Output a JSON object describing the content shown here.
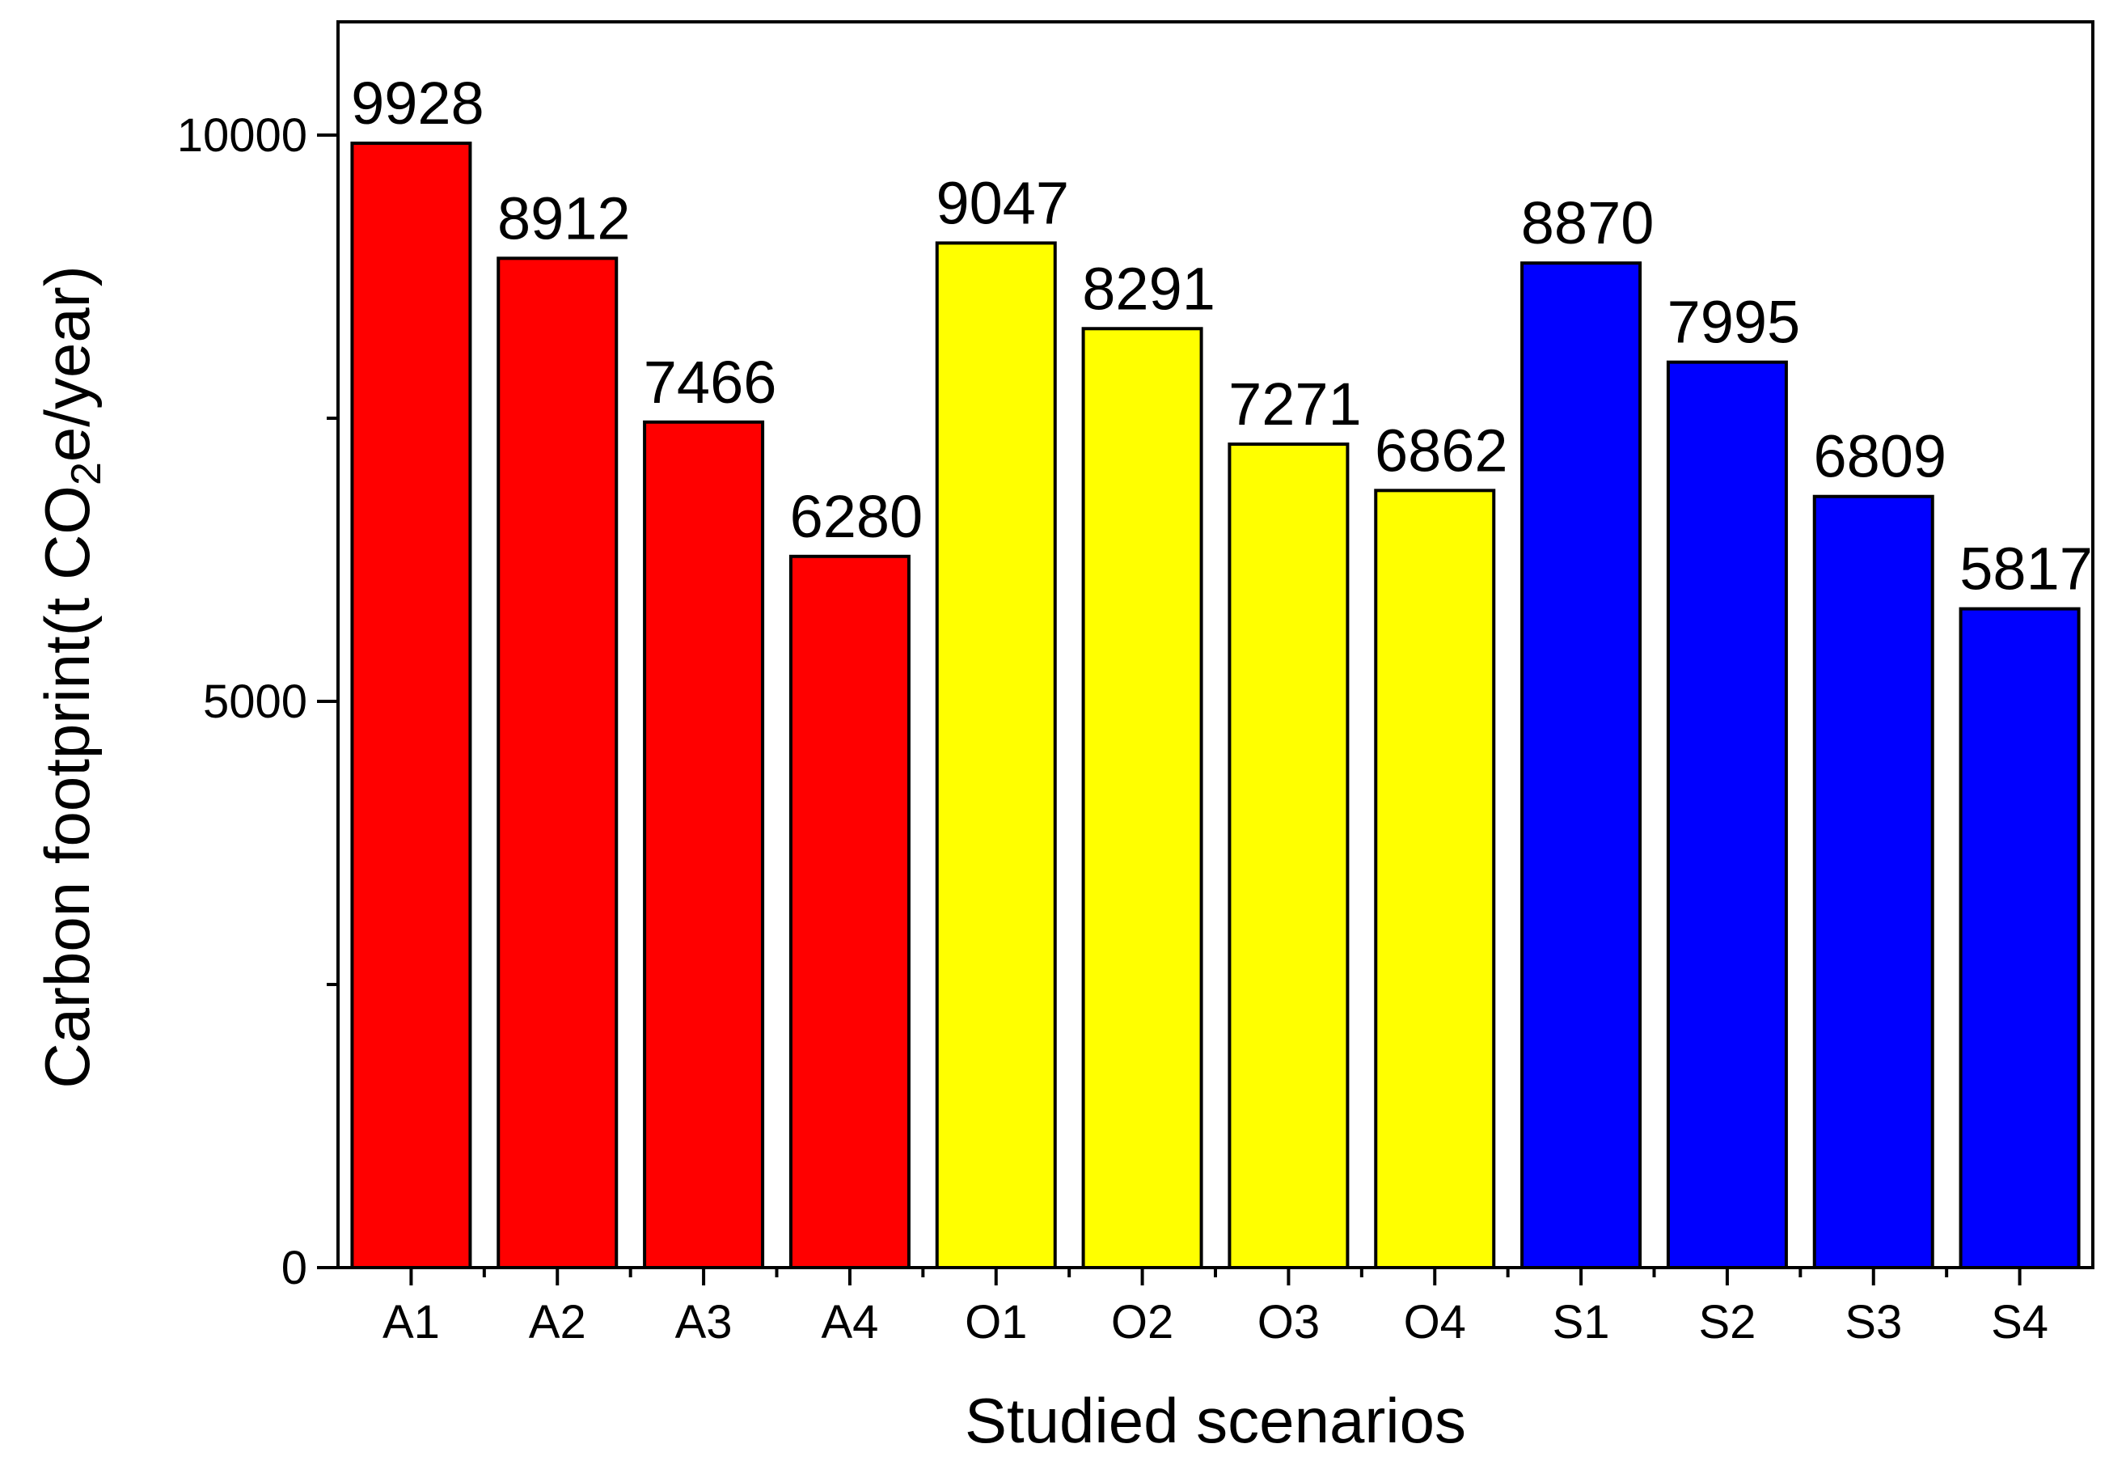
{
  "chart_data": {
    "type": "bar",
    "categories": [
      "A1",
      "A2",
      "A3",
      "A4",
      "O1",
      "O2",
      "O3",
      "O4",
      "S1",
      "S2",
      "S3",
      "S4"
    ],
    "values": [
      9928,
      8912,
      7466,
      6280,
      9047,
      8291,
      7271,
      6862,
      8870,
      7995,
      6809,
      5817
    ],
    "data_labels": [
      "9928",
      "8912",
      "7466",
      "6280",
      "9047",
      "8291",
      "7271",
      "6862",
      "8870",
      "7995",
      "6809",
      "5817"
    ],
    "bar_colors": [
      "#ff0000",
      "#ff0000",
      "#ff0000",
      "#ff0000",
      "#ffff00",
      "#ffff00",
      "#ffff00",
      "#ffff00",
      "#0000ff",
      "#0000ff",
      "#0000ff",
      "#0000ff"
    ],
    "xlabel": "Studied scenarios",
    "ylabel": {
      "prefix": "Carbon footprint(t CO",
      "subscript": "2",
      "suffix": "e/year)"
    },
    "ylim": [
      0,
      11000
    ],
    "yticks_major": [
      0,
      5000,
      10000
    ],
    "yticks_major_labels": [
      "0",
      "5000",
      "10000"
    ],
    "yticks_minor": [
      2500,
      7500
    ],
    "grid": false,
    "legend": "none"
  }
}
